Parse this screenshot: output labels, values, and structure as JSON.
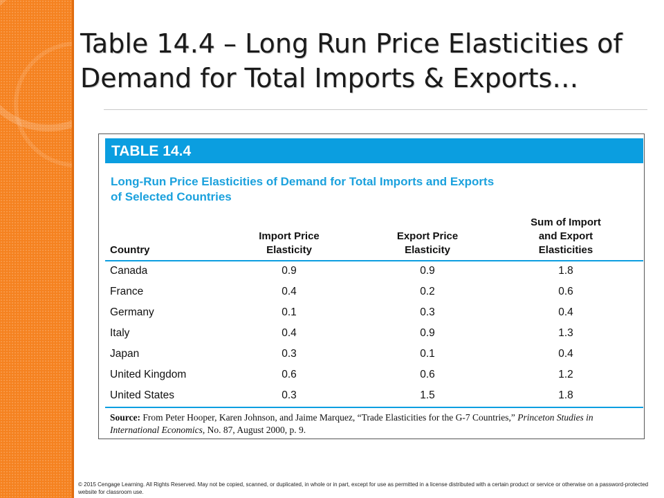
{
  "slide": {
    "title_line1": "Table 14.4 – Long Run Price Elasticities of",
    "title_line2": "Demand for Total Imports & Exports…"
  },
  "table": {
    "label": "TABLE 14.4",
    "caption_line1": "Long-Run Price Elasticities of Demand for Total Imports and Exports",
    "caption_line2": "of Selected Countries",
    "columns": {
      "country": "Country",
      "import_l1": "Import Price",
      "import_l2": "Elasticity",
      "export_l1": "Export Price",
      "export_l2": "Elasticity",
      "sum_l1": "Sum of Import",
      "sum_l2": "and Export",
      "sum_l3": "Elasticities"
    },
    "rows": [
      {
        "country": "Canada",
        "import": "0.9",
        "export": "0.9",
        "sum": "1.8"
      },
      {
        "country": "France",
        "import": "0.4",
        "export": "0.2",
        "sum": "0.6"
      },
      {
        "country": "Germany",
        "import": "0.1",
        "export": "0.3",
        "sum": "0.4"
      },
      {
        "country": "Italy",
        "import": "0.4",
        "export": "0.9",
        "sum": "1.3"
      },
      {
        "country": "Japan",
        "import": "0.3",
        "export": "0.1",
        "sum": "0.4"
      },
      {
        "country": "United Kingdom",
        "import": "0.6",
        "export": "0.6",
        "sum": "1.2"
      },
      {
        "country": "United States",
        "import": "0.3",
        "export": "1.5",
        "sum": "1.8"
      }
    ],
    "source": {
      "label": "Source:",
      "text1": " From Peter Hooper, Karen Johnson, and Jaime Marquez, “Trade Elasticities for the G-7 Countries,” ",
      "journal1": "Princeton Studies in International Economics",
      "text2": ", No. 87, August 2000, p. 9."
    }
  },
  "footer": {
    "copyright": "© 2015 Cengage Learning. All Rights Reserved. May not be copied, scanned, or duplicated, in whole or in part, except for use as permitted in a license distributed with a certain product or service or otherwise on a password-protected website for classroom use."
  },
  "colors": {
    "side_band": "#f58220",
    "table_accent": "#0b9ee0",
    "caption_blue": "#1ba1dd"
  }
}
